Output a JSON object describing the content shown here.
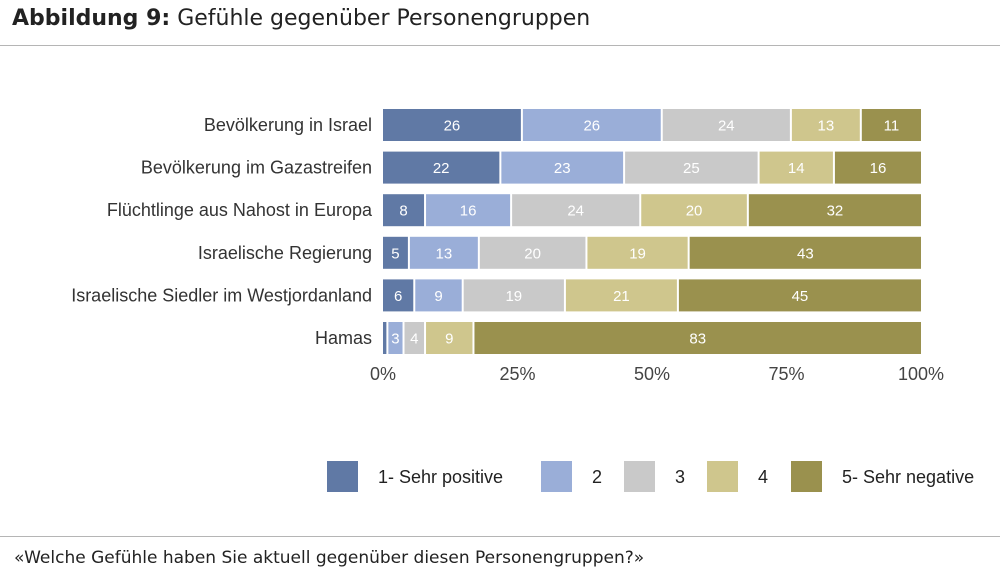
{
  "title": {
    "prefix": "Abbildung 9:",
    "text": "Gefühle gegenüber Personengruppen"
  },
  "footnote": "«Welche Gefühle haben Sie aktuell gegenüber diesen Personengruppen?»",
  "chart_data": {
    "type": "bar",
    "orientation": "horizontal",
    "stacked": true,
    "categories": [
      "Bevölkerung in Israel",
      "Bevölkerung im Gazastreifen",
      "Flüchtlinge aus Nahost in Europa",
      "Israelische Regierung",
      "Israelische Siedler im Westjordanland",
      "Hamas"
    ],
    "series": [
      {
        "name": "1- Sehr positive",
        "color": "#6079a5",
        "label_color": "#ffffff",
        "values": [
          26,
          22,
          8,
          5,
          6,
          1
        ],
        "labels": [
          "26",
          "22",
          "8",
          "5",
          "6",
          ""
        ]
      },
      {
        "name": "2",
        "color": "#9aaed8",
        "label_color": "#ffffff",
        "values": [
          26,
          23,
          16,
          13,
          9,
          3
        ],
        "labels": [
          "26",
          "23",
          "16",
          "13",
          "9",
          "3"
        ]
      },
      {
        "name": "3",
        "color": "#c9c9c9",
        "label_color": "#ffffff",
        "values": [
          24,
          25,
          24,
          20,
          19,
          4
        ],
        "labels": [
          "24",
          "25",
          "24",
          "20",
          "19",
          "4"
        ]
      },
      {
        "name": "4",
        "color": "#cfc68d",
        "label_color": "#ffffff",
        "values": [
          13,
          14,
          20,
          19,
          21,
          9
        ],
        "labels": [
          "13",
          "14",
          "20",
          "19",
          "21",
          "9"
        ]
      },
      {
        "name": "5- Sehr negative",
        "color": "#9a914e",
        "label_color": "#ffffff",
        "values": [
          11,
          16,
          32,
          43,
          45,
          83
        ],
        "labels": [
          "11",
          "16",
          "32",
          "43",
          "45",
          "83"
        ]
      }
    ],
    "xlim": [
      0,
      100
    ],
    "xticks": [
      0,
      25,
      50,
      75,
      100
    ],
    "xtick_labels": [
      "0%",
      "25%",
      "50%",
      "75%",
      "100%"
    ],
    "xlabel": "",
    "ylabel": "",
    "grid": false,
    "legend_position": "bottom-right"
  }
}
